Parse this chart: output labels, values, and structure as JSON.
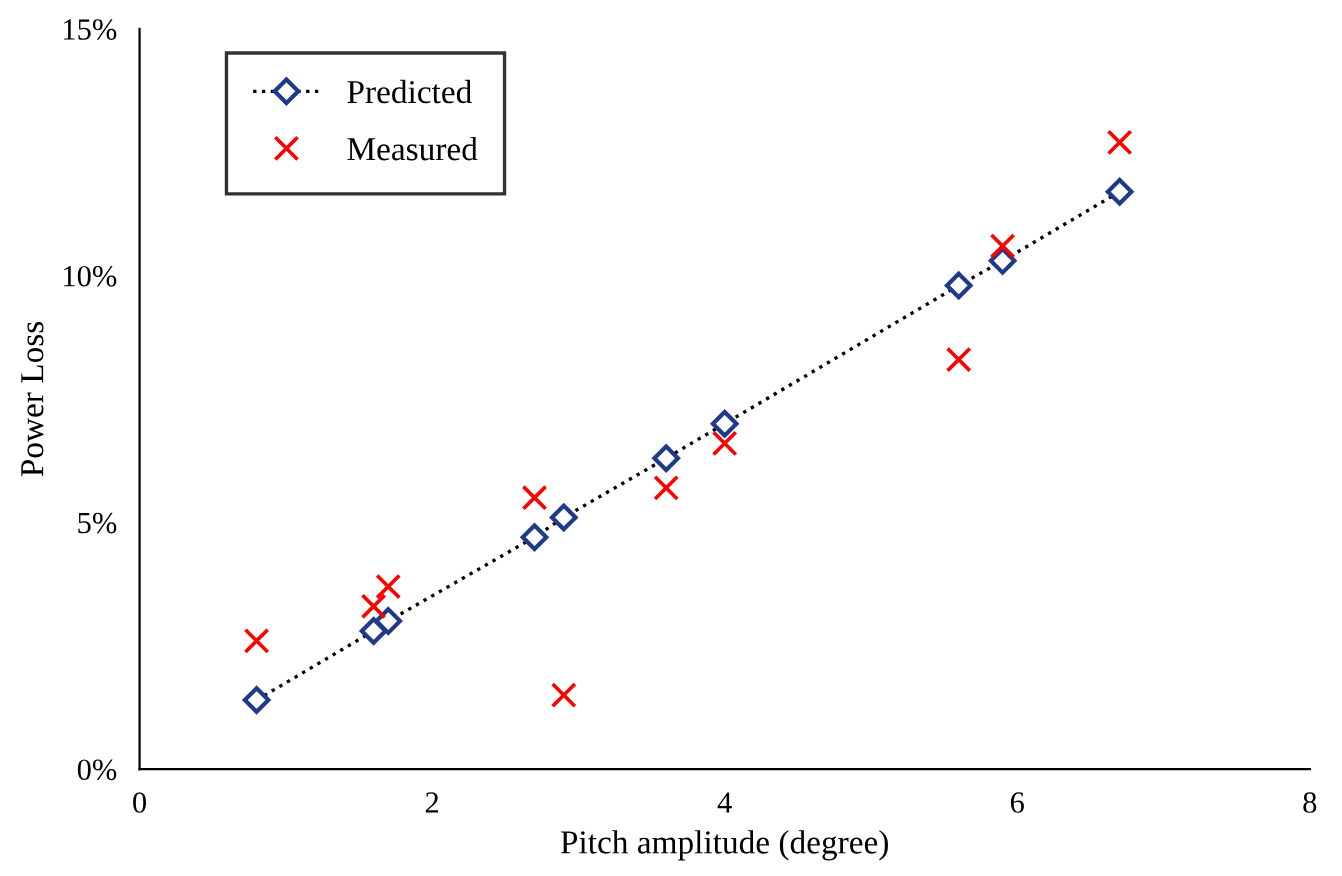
{
  "chart_data": {
    "type": "scatter",
    "xlabel": "Pitch amplitude (degree)",
    "ylabel": "Power Loss",
    "series": [
      {
        "name": "Predicted",
        "type": "line",
        "color": "#1f3a8a",
        "marker": "diamond",
        "line_style": "dotted",
        "x": [
          0.8,
          1.6,
          1.7,
          2.7,
          2.9,
          3.6,
          4.0,
          5.6,
          5.9,
          6.7
        ],
        "values": [
          1.4,
          2.8,
          3.0,
          4.7,
          5.1,
          6.3,
          7.0,
          9.8,
          10.3,
          11.7
        ]
      },
      {
        "name": "Measured",
        "color": "#ff0000",
        "marker": "cross",
        "x": [
          0.8,
          1.6,
          1.7,
          2.7,
          2.9,
          3.6,
          4.0,
          5.6,
          5.9,
          6.7
        ],
        "values": [
          2.6,
          3.3,
          3.7,
          5.5,
          1.5,
          5.7,
          6.6,
          8.3,
          10.6,
          12.7
        ]
      }
    ],
    "xlim": [
      0,
      8
    ],
    "xticks": [
      0,
      2,
      4,
      6,
      8
    ],
    "ylim": [
      0,
      15
    ],
    "yticks": [
      {
        "value": 0,
        "label": "0%"
      },
      {
        "value": 5,
        "label": "5%"
      },
      {
        "value": 10,
        "label": "10%"
      },
      {
        "value": 15,
        "label": "15%"
      }
    ],
    "grid": false,
    "legend": "top left"
  }
}
